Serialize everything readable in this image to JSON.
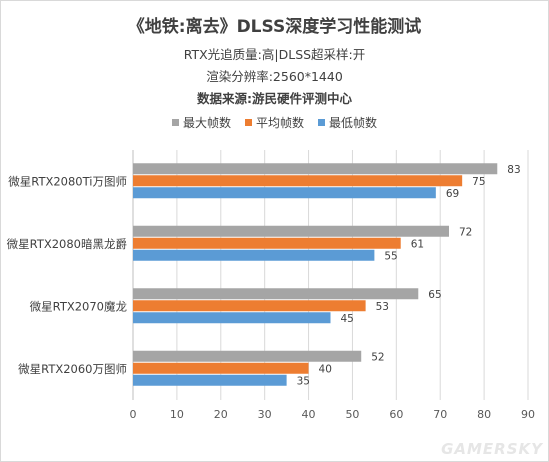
{
  "chart_data": {
    "type": "bar",
    "orientation": "horizontal",
    "title": "《地铁:离去》DLSS深度学习性能测试",
    "subtitles": [
      "RTX光追质量:高|DLSS超采样:开",
      "渲染分辨率:2560*1440",
      "数据来源:游民硬件评测中心"
    ],
    "categories": [
      "微星RTX2080Ti万图师",
      "微星RTX2080暗黑龙爵",
      "微星RTX2070魔龙",
      "微星RTX2060万图师"
    ],
    "series": [
      {
        "name": "最大帧数",
        "color": "#a5a5a5",
        "values": [
          83,
          72,
          65,
          52
        ]
      },
      {
        "name": "平均帧数",
        "color": "#ed7d31",
        "values": [
          75,
          61,
          53,
          40
        ]
      },
      {
        "name": "最低帧数",
        "color": "#5b9bd5",
        "values": [
          69,
          55,
          45,
          35
        ]
      }
    ],
    "xlim": [
      0,
      90
    ],
    "xticks": [
      0,
      10,
      20,
      30,
      40,
      50,
      60,
      70,
      80,
      90
    ],
    "grid": true,
    "legend_position": "top-center"
  },
  "watermark": "GAMERSKY"
}
